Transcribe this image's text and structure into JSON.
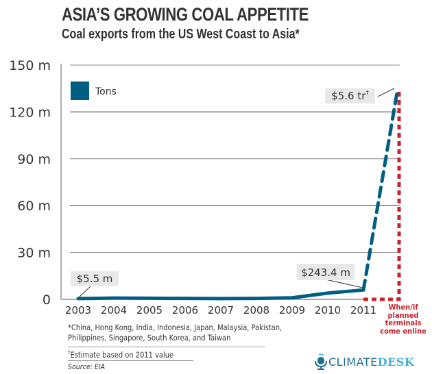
{
  "header": {
    "title": "ASIA’S GROWING COAL APPETITE",
    "subtitle": "Coal exports from the US West Coast to Asia*"
  },
  "chart_data": {
    "type": "line",
    "title": "ASIA’S GROWING COAL APPETITE",
    "subtitle": "Coal exports from the US West Coast to Asia*",
    "xlabel": "",
    "ylabel": "",
    "ylim": [
      0,
      150
    ],
    "grid": true,
    "y_ticks": [
      {
        "value": 0,
        "label": "0"
      },
      {
        "value": 30,
        "label": "30 m"
      },
      {
        "value": 60,
        "label": "60 m"
      },
      {
        "value": 90,
        "label": "90 m"
      },
      {
        "value": 120,
        "label": "120 m"
      },
      {
        "value": 150,
        "label": "150 m"
      }
    ],
    "x_ticks": [
      "2003",
      "2004",
      "2005",
      "2006",
      "2007",
      "2008",
      "2009",
      "2010",
      "2011"
    ],
    "legend": {
      "placement": "top-left",
      "entries": [
        {
          "label": "Tons",
          "color": "#005e83"
        }
      ]
    },
    "series": [
      {
        "name": "Tons",
        "style": "solid",
        "color": "#005e83",
        "x": [
          2003,
          2004,
          2005,
          2006,
          2007,
          2008,
          2009,
          2010,
          2011
        ],
        "values": [
          0.5,
          0.8,
          0.7,
          0.6,
          0.5,
          0.6,
          1.0,
          4.0,
          6.0
        ]
      },
      {
        "name": "Projection",
        "style": "dashed",
        "color": "#005e83",
        "x": [
          2011,
          2012
        ],
        "values": [
          6.0,
          135
        ]
      }
    ],
    "projection_marker": {
      "color": "#c8232c",
      "style": "dotted",
      "x": 2012,
      "label_lines": [
        "When/if",
        "planned",
        "terminals",
        "come online"
      ]
    },
    "annotations": [
      {
        "text": "$5.5 m",
        "x": 2003,
        "y": 0.5
      },
      {
        "text": "$243.4 m",
        "x": 2011,
        "y": 6.0
      },
      {
        "text": "$5.6 tr",
        "sup": "†",
        "x": 2012,
        "y": 135
      }
    ]
  },
  "footnotes": {
    "countries_line1": "*China, Hong Kong, India, Indonesia, Japan, Malaysia, Pakistan,",
    "countries_line2": "Philippines, Singapore, South Korea, and Taiwan",
    "dagger": "†",
    "estimate": "Estimate based on 2011 value",
    "source": "Source: EIA"
  },
  "logo": {
    "part1": "CLIMATE",
    "part2": "DESK",
    "icon": "microphone-icon"
  },
  "colors": {
    "series": "#005e83",
    "projection": "#c8232c",
    "text": "#333333",
    "label_bg": "#e8e8e8"
  }
}
